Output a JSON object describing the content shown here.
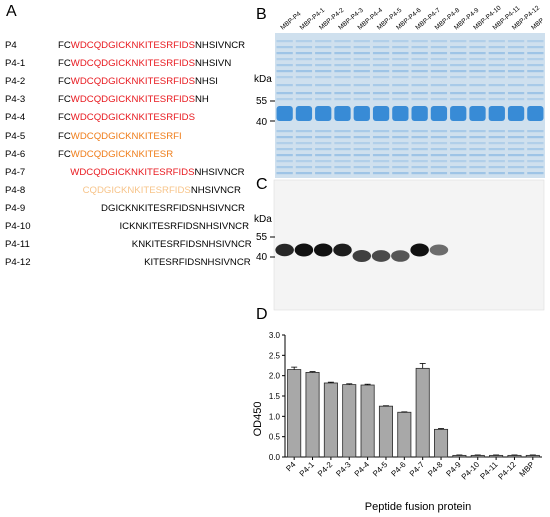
{
  "panels": {
    "a": "A",
    "b": "B",
    "c": "C",
    "d": "D"
  },
  "sequences": [
    {
      "name": "P4",
      "offset": 0,
      "parts": [
        {
          "t": "FC",
          "c": "k"
        },
        {
          "t": "WDCQDGICKNKITESRFIDS",
          "c": "r"
        },
        {
          "t": "NHSIVNCR",
          "c": "k"
        }
      ]
    },
    {
      "name": "P4-1",
      "offset": 0,
      "parts": [
        {
          "t": "FC",
          "c": "k"
        },
        {
          "t": "WDCQDGICKNKITESRFIDS",
          "c": "r"
        },
        {
          "t": "NHSIVN",
          "c": "k"
        }
      ]
    },
    {
      "name": "P4-2",
      "offset": 0,
      "parts": [
        {
          "t": "FC",
          "c": "k"
        },
        {
          "t": "WDCQDGICKNKITESRFIDS",
          "c": "r"
        },
        {
          "t": "NHSI",
          "c": "k"
        }
      ]
    },
    {
      "name": "P4-3",
      "offset": 0,
      "parts": [
        {
          "t": "FC",
          "c": "k"
        },
        {
          "t": "WDCQDGICKNKITESRFIDS",
          "c": "r"
        },
        {
          "t": "NH",
          "c": "k"
        }
      ]
    },
    {
      "name": "P4-4",
      "offset": 0,
      "parts": [
        {
          "t": "FC",
          "c": "k"
        },
        {
          "t": "WDCQDGICKNKITESRFIDS",
          "c": "r"
        }
      ]
    },
    {
      "name": "P4-5",
      "offset": 0,
      "parts": [
        {
          "t": "FC",
          "c": "k"
        },
        {
          "t": "WDCQDGICKNKITESRFI",
          "c": "o"
        }
      ]
    },
    {
      "name": "P4-6",
      "offset": 0,
      "parts": [
        {
          "t": "FC",
          "c": "k"
        },
        {
          "t": "WDCQDGICKNKITESR",
          "c": "o"
        }
      ]
    },
    {
      "name": "P4-7",
      "offset": 2,
      "parts": [
        {
          "t": "WDCQDGICKNKITESRFIDS",
          "c": "r"
        },
        {
          "t": "NHSIVNCR",
          "c": "k"
        }
      ]
    },
    {
      "name": "P4-8",
      "offset": 4,
      "parts": [
        {
          "t": "CQDGICKNKITESRFIDS",
          "c": "lo"
        },
        {
          "t": "NHSIVNCR",
          "c": "k"
        }
      ]
    },
    {
      "name": "P4-9",
      "offset": 7,
      "parts": [
        {
          "t": "DGICKNKITESRFIDSNHSIVNCR",
          "c": "k"
        }
      ]
    },
    {
      "name": "P4-10",
      "offset": 10,
      "parts": [
        {
          "t": "ICKNKITESRFIDSNHSIVNCR",
          "c": "k"
        }
      ]
    },
    {
      "name": "P4-11",
      "offset": 12,
      "parts": [
        {
          "t": "KNKITESRFIDSNHSIVNCR",
          "c": "k"
        }
      ]
    },
    {
      "name": "P4-12",
      "offset": 14,
      "parts": [
        {
          "t": "KITESRFIDSNHSIVNCR",
          "c": "k"
        }
      ]
    }
  ],
  "lanes": [
    "MBP-P4",
    "MBP-P4-1",
    "MBP-P4-2",
    "MBP-P4-3",
    "MBP-P4-4",
    "MBP-P4-5",
    "MBP-P4-6",
    "MBP-P4-7",
    "MBP-P4-8",
    "MBP-P4-9",
    "MBP-P4-10",
    "MBP-P4-11",
    "MBP-P4-12",
    "MBP"
  ],
  "gel_b": {
    "kda": "kDa",
    "markers": [
      "55",
      "40"
    ]
  },
  "blot_c": {
    "kda": "kDa",
    "markers": [
      "55",
      "40"
    ],
    "band_intensity": [
      0.9,
      1.0,
      1.0,
      0.95,
      0.8,
      0.75,
      0.7,
      1.0,
      0.6,
      0,
      0,
      0,
      0,
      0
    ]
  },
  "chart_data": {
    "type": "bar",
    "categories": [
      "P4",
      "P4-1",
      "P4-2",
      "P4-3",
      "P4-4",
      "P4-5",
      "P4-6",
      "P4-7",
      "P4-8",
      "P4-9",
      "P4-10",
      "P4-11",
      "P4-12",
      "MBP"
    ],
    "values": [
      2.15,
      2.08,
      1.82,
      1.78,
      1.77,
      1.25,
      1.1,
      2.18,
      0.68,
      0.04,
      0.04,
      0.04,
      0.04,
      0.04
    ],
    "errors": [
      0.06,
      0.02,
      0.02,
      0.02,
      0.02,
      0.01,
      0.01,
      0.12,
      0.02,
      0.01,
      0.01,
      0.01,
      0.01,
      0.01
    ],
    "yticks": [
      "0.0",
      "0.5",
      "1.0",
      "1.5",
      "2.0",
      "2.5",
      "3.0"
    ],
    "ylim": [
      0,
      3
    ],
    "ylabel": "OD450",
    "xlabel": "Peptide fusion protein",
    "colors": {
      "bar": "#a8a8a8",
      "stroke": "#2a2a2a",
      "red": "#e8191f",
      "orange": "#ef7d1a",
      "lightorange": "#f7c48a",
      "gel_band": "#2f86d4",
      "gel_bg": "#cfe0ee"
    }
  }
}
